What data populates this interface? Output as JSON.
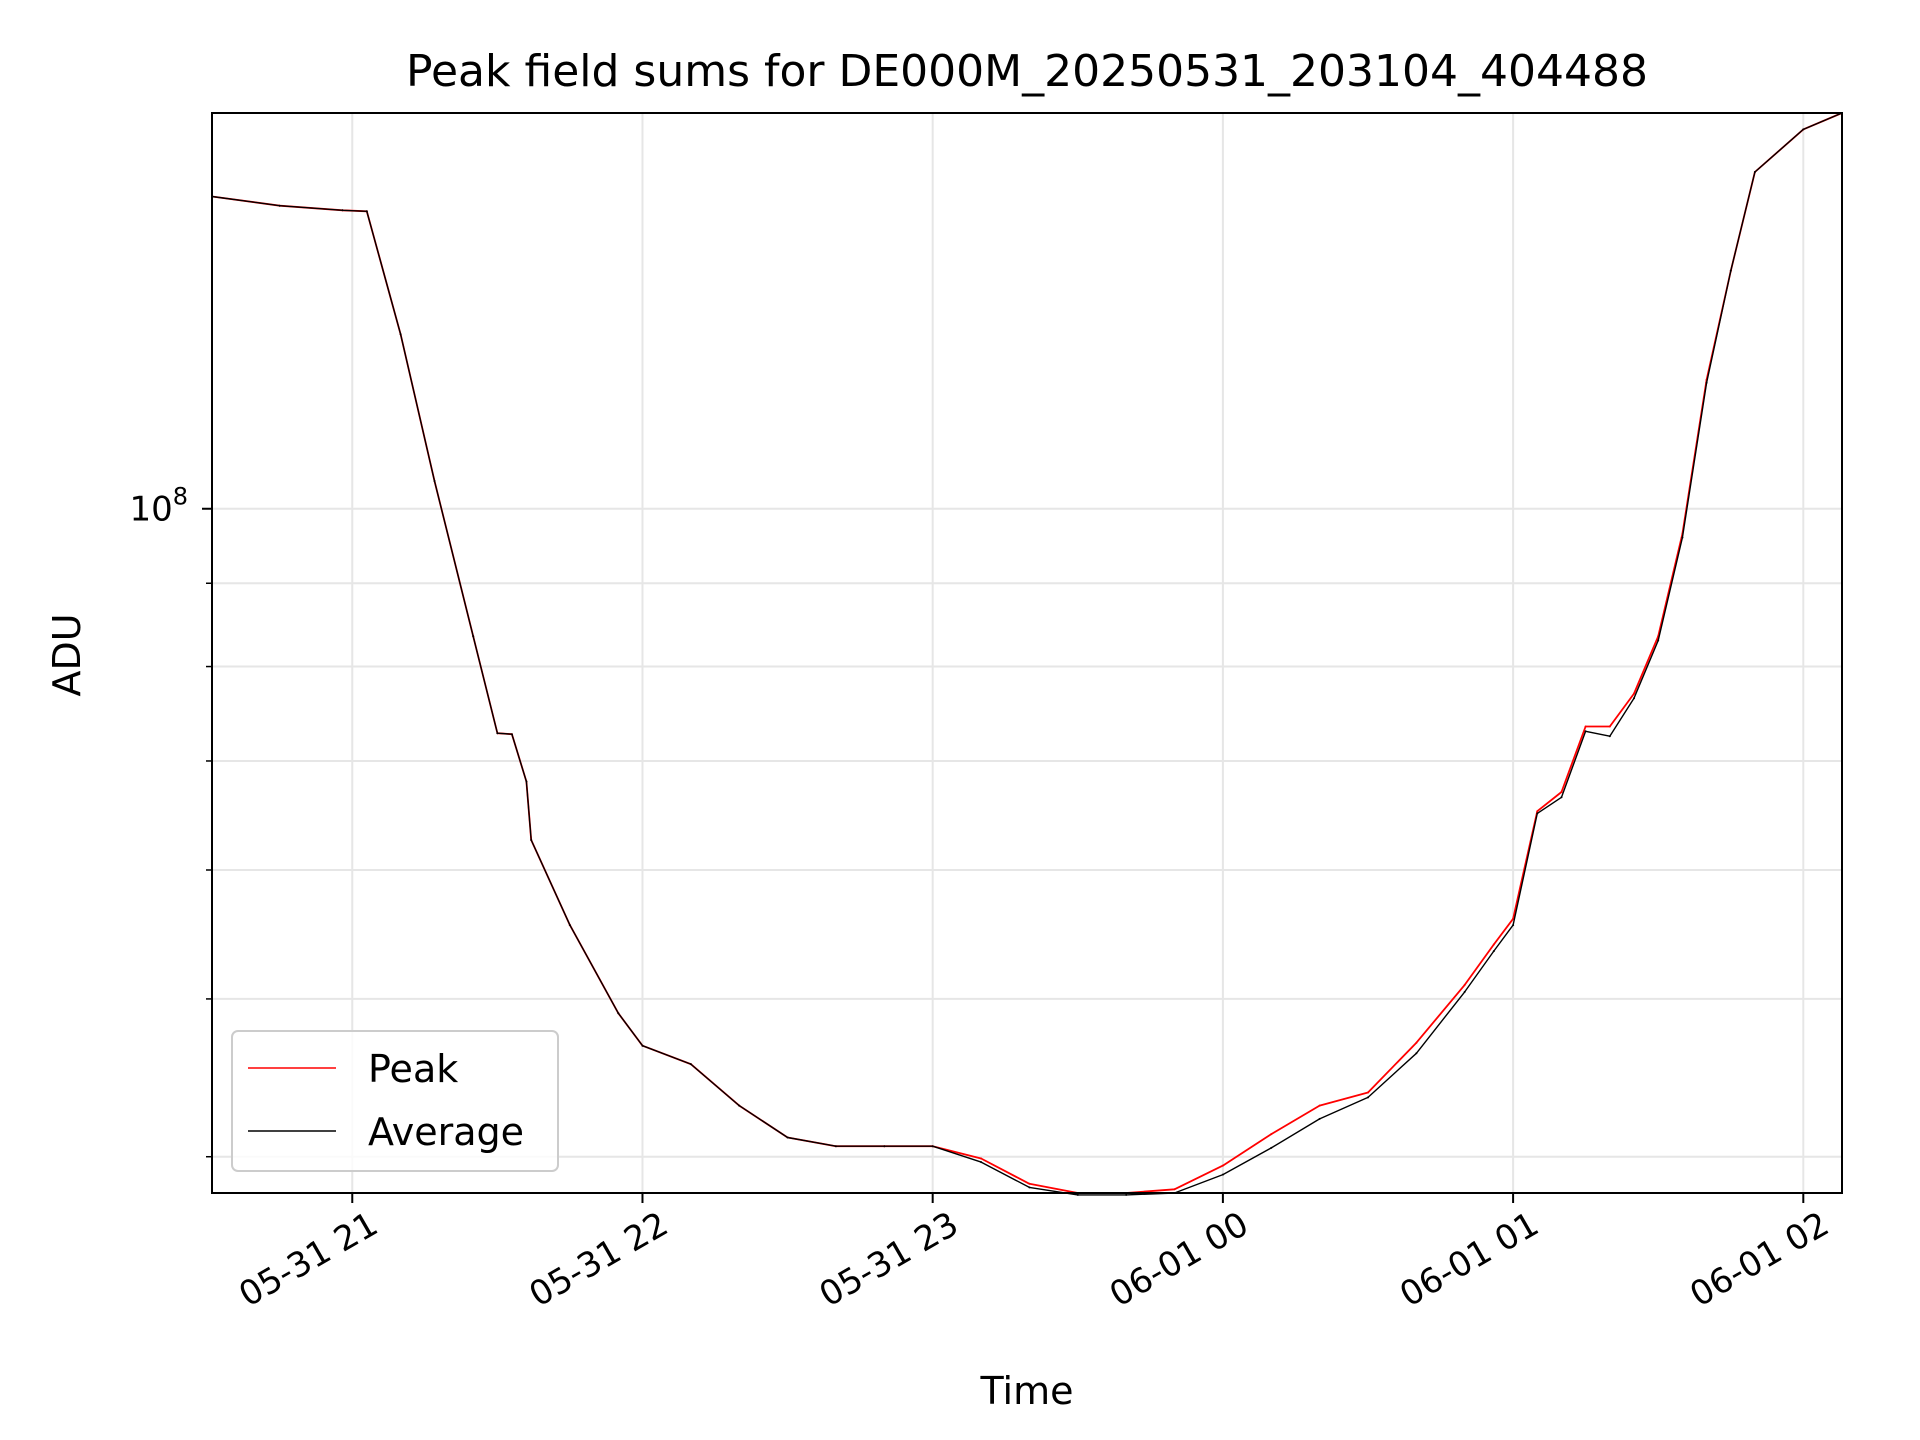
{
  "chart_data": {
    "type": "line",
    "title": "Peak field sums for DE000M_20250531_203104_404488",
    "xlabel": "Time",
    "ylabel": "ADU",
    "yscale": "log",
    "xlim": [
      "05-31 20:31",
      "06-01 02:08"
    ],
    "ylim": [
      38000000,
      175000000
    ],
    "grid": true,
    "legend_position": "lower left",
    "x_ticks": [
      "05-31 21",
      "05-31 22",
      "05-31 23",
      "06-01 00",
      "06-01 01",
      "06-01 02"
    ],
    "y_tick_labels": [
      {
        "base": "10",
        "exp": "8",
        "value": 100000000
      }
    ],
    "y_minor_ticks": [
      40000000,
      50000000,
      60000000,
      70000000,
      80000000,
      90000000,
      200000000
    ],
    "series": [
      {
        "name": "Peak",
        "color": "#ff0000",
        "x": [
          "05-31 20:31",
          "05-31 20:45",
          "05-31 20:58",
          "05-31 21:03",
          "05-31 21:10",
          "05-31 21:17",
          "05-31 21:25",
          "05-31 21:30",
          "05-31 21:33",
          "05-31 21:36",
          "05-31 21:37",
          "05-31 21:45",
          "05-31 21:55",
          "05-31 22:00",
          "05-31 22:10",
          "05-31 22:20",
          "05-31 22:30",
          "05-31 22:40",
          "05-31 22:50",
          "05-31 23:00",
          "05-31 23:10",
          "05-31 23:20",
          "05-31 23:30",
          "05-31 23:40",
          "05-31 23:50",
          "06-01 00:00",
          "06-01 00:10",
          "06-01 00:20",
          "06-01 00:30",
          "06-01 00:40",
          "06-01 00:50",
          "06-01 00:56",
          "06-01 01:00",
          "06-01 01:05",
          "06-01 01:10",
          "06-01 01:15",
          "06-01 01:20",
          "06-01 01:25",
          "06-01 01:30",
          "06-01 01:35",
          "06-01 01:40",
          "06-01 01:45",
          "06-01 01:50",
          "06-01 02:00",
          "06-01 02:08"
        ],
        "y": [
          155500000,
          153500000,
          152500000,
          152300000,
          128000000,
          104000000,
          83500000,
          72800000,
          72700000,
          68000000,
          62600000,
          55500000,
          49000000,
          46800000,
          45600000,
          43000000,
          41100000,
          40600000,
          40600000,
          40600000,
          39900000,
          38500000,
          38000000,
          38000000,
          38200000,
          39500000,
          41300000,
          43000000,
          43800000,
          47000000,
          51000000,
          54000000,
          56000000,
          65200000,
          67000000,
          73500000,
          73500000,
          77000000,
          83500000,
          96500000,
          120000000,
          140000000,
          161000000,
          171000000,
          175000000
        ]
      },
      {
        "name": "Average",
        "color": "#000000",
        "x": [
          "05-31 20:31",
          "05-31 20:45",
          "05-31 20:58",
          "05-31 21:03",
          "05-31 21:10",
          "05-31 21:17",
          "05-31 21:25",
          "05-31 21:30",
          "05-31 21:33",
          "05-31 21:36",
          "05-31 21:37",
          "05-31 21:45",
          "05-31 21:55",
          "05-31 22:00",
          "05-31 22:10",
          "05-31 22:20",
          "05-31 22:30",
          "05-31 22:40",
          "05-31 22:50",
          "05-31 23:00",
          "05-31 23:10",
          "05-31 23:20",
          "05-31 23:30",
          "05-31 23:40",
          "05-31 23:50",
          "06-01 00:00",
          "06-01 00:10",
          "06-01 00:20",
          "06-01 00:30",
          "06-01 00:40",
          "06-01 00:50",
          "06-01 00:56",
          "06-01 01:00",
          "06-01 01:05",
          "06-01 01:10",
          "06-01 01:15",
          "06-01 01:20",
          "06-01 01:25",
          "06-01 01:30",
          "06-01 01:35",
          "06-01 01:40",
          "06-01 01:45",
          "06-01 01:50",
          "06-01 02:00",
          "06-01 02:08"
        ],
        "y": [
          155500000,
          153500000,
          152500000,
          152300000,
          128000000,
          104000000,
          83500000,
          72800000,
          72700000,
          68000000,
          62600000,
          55500000,
          49000000,
          46800000,
          45600000,
          43000000,
          41100000,
          40600000,
          40600000,
          40600000,
          39700000,
          38300000,
          37900000,
          37900000,
          38000000,
          39000000,
          40500000,
          42200000,
          43500000,
          46300000,
          50500000,
          53500000,
          55500000,
          65000000,
          66500000,
          73000000,
          72500000,
          76500000,
          83000000,
          96000000,
          119500000,
          140000000,
          161000000,
          171000000,
          175000000
        ]
      }
    ]
  }
}
